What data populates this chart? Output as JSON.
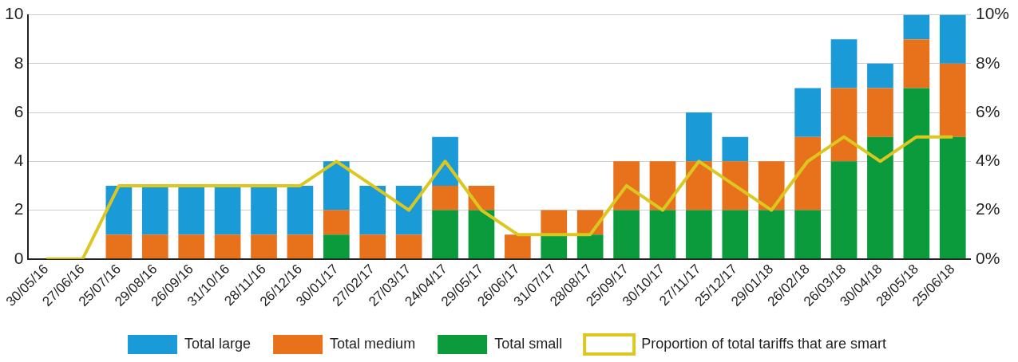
{
  "chart_data": {
    "type": "bar",
    "stacked": true,
    "categories": [
      "30/05/16",
      "27/06/16",
      "25/07/16",
      "29/08/16",
      "26/09/16",
      "31/10/16",
      "28/11/16",
      "26/12/16",
      "30/01/17",
      "27/02/17",
      "27/03/17",
      "24/04/17",
      "29/05/17",
      "26/06/17",
      "31/07/17",
      "28/08/17",
      "25/09/17",
      "30/10/17",
      "27/11/17",
      "25/12/17",
      "29/01/18",
      "26/02/18",
      "26/03/18",
      "30/04/18",
      "28/05/18",
      "25/06/18"
    ],
    "series": [
      {
        "name": "Total small",
        "color": "#0b9a3c",
        "values": [
          0,
          0,
          0,
          0,
          0,
          0,
          0,
          0,
          1,
          0,
          0,
          2,
          2,
          0,
          1,
          1,
          2,
          2,
          2,
          2,
          2,
          2,
          4,
          5,
          7,
          5
        ]
      },
      {
        "name": "Total medium",
        "color": "#e8711c",
        "values": [
          0,
          0,
          1,
          1,
          1,
          1,
          1,
          1,
          1,
          1,
          1,
          1,
          1,
          1,
          1,
          1,
          2,
          2,
          2,
          2,
          2,
          3,
          3,
          2,
          2,
          3
        ]
      },
      {
        "name": "Total large",
        "color": "#1a9ad6",
        "values": [
          0,
          0,
          2,
          2,
          2,
          2,
          2,
          2,
          2,
          2,
          2,
          2,
          0,
          0,
          0,
          0,
          0,
          0,
          2,
          1,
          0,
          2,
          2,
          1,
          1,
          2
        ]
      },
      {
        "name": "Proportion of total tariffs that are smart",
        "type": "line",
        "axis": "y2",
        "color": "#dcc720",
        "values": [
          0,
          0,
          3,
          3,
          3,
          3,
          3,
          3,
          4,
          3,
          2,
          4,
          2,
          1,
          1,
          1,
          3,
          2,
          4,
          3,
          2,
          4,
          5,
          4,
          5,
          5
        ]
      }
    ],
    "ylim": [
      0,
      10
    ],
    "yticks": [
      0,
      2,
      4,
      6,
      8,
      10
    ],
    "y2lim": [
      0,
      10
    ],
    "y2ticks": [
      {
        "value": 0,
        "label": "0%"
      },
      {
        "value": 2,
        "label": "2%"
      },
      {
        "value": 4,
        "label": "4%"
      },
      {
        "value": 6,
        "label": "6%"
      },
      {
        "value": 8,
        "label": "8%"
      },
      {
        "value": 10,
        "label": "10%"
      }
    ],
    "grid": "y",
    "legend": "bottom",
    "marker": "none",
    "line_style": "solid"
  }
}
